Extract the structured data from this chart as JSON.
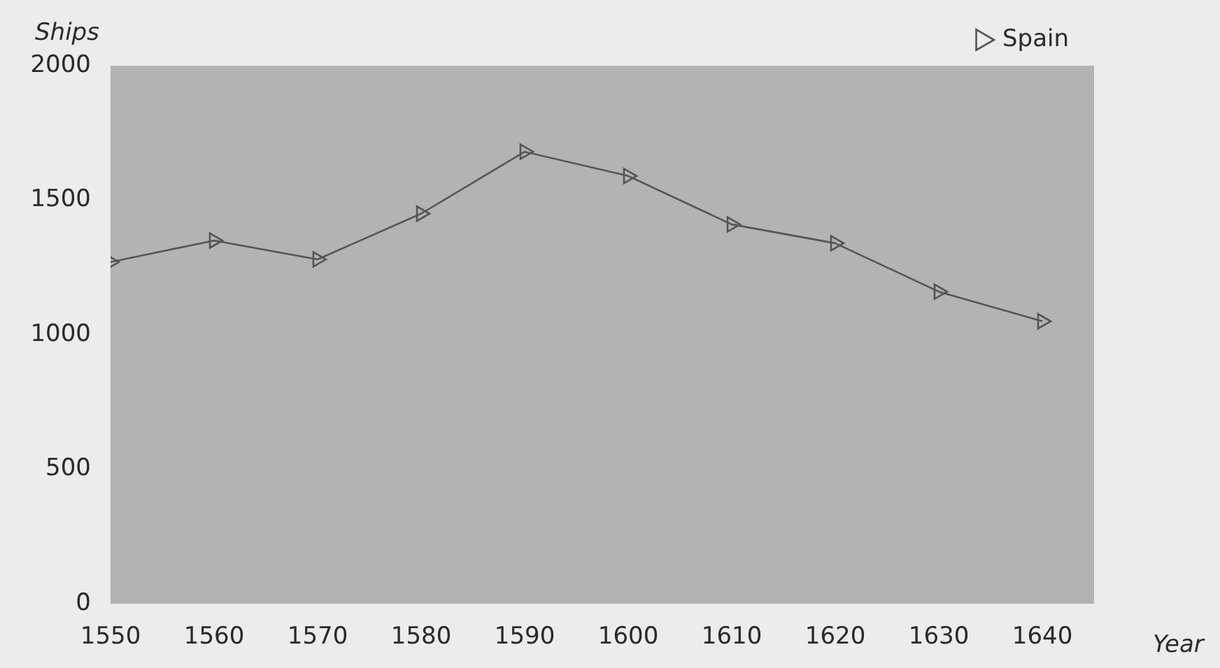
{
  "chart_data": {
    "type": "line",
    "xlabel": "Year",
    "ylabel": "Ships",
    "x": [
      1550,
      1560,
      1570,
      1580,
      1590,
      1600,
      1610,
      1620,
      1630,
      1640
    ],
    "series": [
      {
        "name": "Spain",
        "color": "#555555",
        "values": [
          1270,
          1350,
          1280,
          1450,
          1680,
          1590,
          1410,
          1340,
          1160,
          1050
        ]
      }
    ],
    "xlim": [
      1550,
      1645
    ],
    "xticks": [
      1550,
      1560,
      1570,
      1580,
      1590,
      1600,
      1610,
      1620,
      1630,
      1640
    ],
    "ylim": [
      0,
      2000
    ],
    "yticks": [
      0,
      500,
      1000,
      1500,
      2000
    ],
    "grid": false,
    "legend": "top right",
    "marker": "triangle",
    "line_style": "solid"
  }
}
